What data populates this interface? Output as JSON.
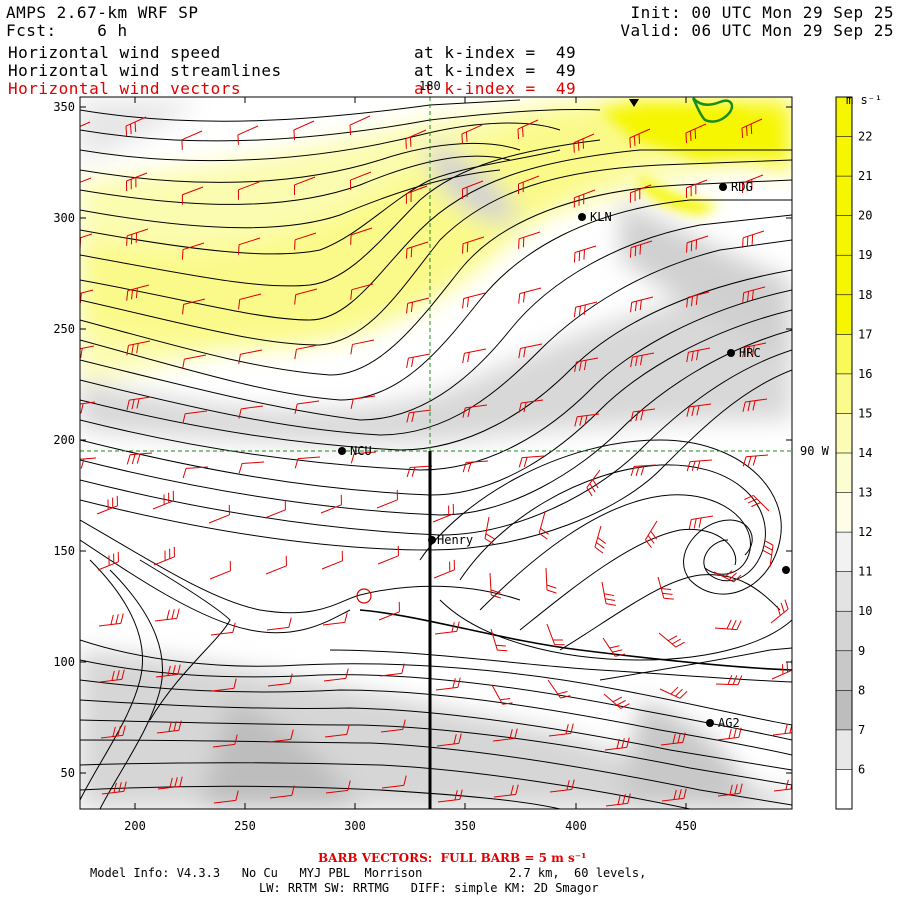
{
  "header": {
    "title": "AMPS 2.67-km WRF SP",
    "fcst_label": "Fcst:",
    "fcst_value": "6 h",
    "init": "Init: 00 UTC Mon 29 Sep 25",
    "valid": "Valid: 06 UTC Mon 29 Sep 25",
    "fields": [
      {
        "name": "Horizontal wind speed",
        "level": "at k-index =  49"
      },
      {
        "name": "Horizontal wind streamlines",
        "level": "at k-index =  49"
      },
      {
        "name": "Horizontal wind vectors",
        "level": "at k-index =  49"
      }
    ]
  },
  "axes": {
    "x_ticks": [
      "200",
      "250",
      "300",
      "350",
      "400",
      "450"
    ],
    "y_ticks": [
      "350",
      "300",
      "250",
      "200",
      "150",
      "100",
      "50"
    ],
    "ref_lon_label": "180",
    "ref_lat_label": "90 W"
  },
  "stations": [
    {
      "name": "RDG"
    },
    {
      "name": "KLN"
    },
    {
      "name": "HRC"
    },
    {
      "name": "NCU"
    },
    {
      "name": "Henry"
    },
    {
      "name": "AG2"
    }
  ],
  "colorbar": {
    "units": "m s⁻¹",
    "labels": [
      "22",
      "21",
      "20",
      "19",
      "18",
      "17",
      "16",
      "15",
      "14",
      "13",
      "12",
      "11",
      "10",
      "9",
      "8",
      "7",
      "6"
    ],
    "colors": [
      "#f6f600",
      "#f6f600",
      "#f6f600",
      "#f6f600",
      "#f6f600",
      "#f9f95a",
      "#fbfb8c",
      "#fcfcb4",
      "#fdfdd2",
      "#fefee8",
      "#f2f2f2",
      "#e3e3e3",
      "#d4d4d4",
      "#c8c8c8",
      "#bdbdbd",
      "#e8e8e8",
      "#ffffff"
    ],
    "top_color": "#f6f600"
  },
  "footer": {
    "barb": "BARB VECTORS:  FULL BARB = 5 m s⁻¹",
    "line1": "Model Info: V4.3.3   No Cu   MYJ PBL  Morrison            2.7 km,  60 levels,",
    "line2": "LW: RRTM SW: RRTMG   DIFF: simple KM: 2D Smagor"
  },
  "colors": {
    "barb": "#e00000",
    "stream": "#000000",
    "coast": "#1a8c1a"
  }
}
